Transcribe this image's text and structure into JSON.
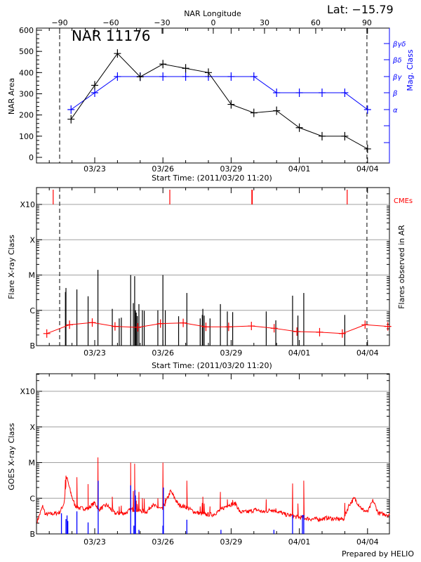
{
  "header": {
    "longitude_axis_label": "NAR Longitude",
    "latitude": "Lat: −15.79",
    "region_title": "NAR 11176"
  },
  "footer": {
    "credit": "Prepared by HELIO"
  },
  "colors": {
    "area": "#000000",
    "mag_class": "#0000ff",
    "cme": "#ff0000",
    "flare_count": "#ff0000",
    "goes_long": "#ff0000",
    "goes_short": "#0000ff",
    "grid": "#a0a0a0"
  },
  "chart_data": [
    {
      "type": "line",
      "title": "NAR 11176",
      "xlabel": "Start Time: (2011/03/20 11:20)",
      "ylabel": "NAR Area",
      "y2label": "Mag. Class",
      "x2label": "NAR Longitude",
      "x_tick_labels": [
        "03/23",
        "03/26",
        "03/29",
        "04/01",
        "04/04"
      ],
      "x2_tick_labels": [
        "−90",
        "−60",
        "−30",
        "0",
        "30",
        "60",
        "90"
      ],
      "limb_longitudes": [
        -90,
        90
      ],
      "ylim": [
        0,
        600
      ],
      "y_tick_labels": [
        "0",
        "100",
        "200",
        "300",
        "400",
        "500",
        "600"
      ],
      "y2_tick_labels": [
        "α",
        "β",
        "βγ",
        "βδ",
        "βγδ"
      ],
      "x": [
        "03/21 23:00",
        "03/23 00:00",
        "03/24 00:00",
        "03/25 00:00",
        "03/26 00:00",
        "03/27 00:00",
        "03/28 00:00",
        "03/29 00:00",
        "03/30 00:00",
        "03/31 00:00",
        "04/01 00:00",
        "04/02 00:00",
        "04/03 00:00",
        "04/04 00:00"
      ],
      "series": [
        {
          "name": "NAR Area",
          "values": [
            180,
            340,
            490,
            380,
            440,
            420,
            400,
            250,
            210,
            220,
            140,
            100,
            100,
            40
          ]
        },
        {
          "name": "Mag. Class",
          "values": [
            "α",
            "β",
            "βγ",
            "βγ",
            "βγ",
            "βγ",
            "βγ",
            "βγ",
            "βγ",
            "β",
            "β",
            "β",
            "β",
            "α"
          ]
        }
      ],
      "grid": false
    },
    {
      "type": "bar",
      "xlabel": "Start Time: (2011/03/20 11:20)",
      "ylabel": "Flare X-ray Class",
      "y2label": "Flares observed in AR",
      "cme_label": "CMEs",
      "x_tick_labels": [
        "03/23",
        "03/26",
        "03/29",
        "04/01",
        "04/04"
      ],
      "y_tick_labels": [
        "B",
        "C",
        "M",
        "X",
        "X10"
      ],
      "grid": true,
      "flares": [
        [
          "03/21 17:04",
          "C3.3"
        ],
        [
          "03/21 17:38",
          "C4.3"
        ],
        [
          "03/22 05:10",
          "C3.9"
        ],
        [
          "03/22 17:00",
          "C2.5"
        ],
        [
          "03/23 03:23",
          "M1.4"
        ],
        [
          "03/23 18:33",
          "C1.1"
        ],
        [
          "03/24 01:52",
          "B5.9"
        ],
        [
          "03/24 04:06",
          "B6.2"
        ],
        [
          "03/24 13:57",
          "M1.0"
        ],
        [
          "03/24 16:46",
          "C1.6"
        ],
        [
          "03/24 18:10",
          "C9.3"
        ],
        [
          "03/24 19:00",
          "C1.0"
        ],
        [
          "03/24 19:51",
          "B8.6"
        ],
        [
          "03/24 20:58",
          "B6.9"
        ],
        [
          "03/24 22:39",
          "C1.5"
        ],
        [
          "03/25 02:19",
          "C1.0"
        ],
        [
          "03/25 04:17",
          "B9.7"
        ],
        [
          "03/25 18:38",
          "C1.0"
        ],
        [
          "03/25 23:58",
          "M1.0"
        ],
        [
          "03/26 02:30",
          "C1.0"
        ],
        [
          "03/26 16:33",
          "B6.8"
        ],
        [
          "03/27 01:16",
          "C3.1"
        ],
        [
          "03/27 15:20",
          "B5.9"
        ],
        [
          "03/27 17:34",
          "B7.4"
        ],
        [
          "03/27 18:08",
          "C1.1"
        ],
        [
          "03/27 19:32",
          "B7.1"
        ],
        [
          "03/28 01:43",
          "B5.9"
        ],
        [
          "03/28 12:41",
          "C1.5"
        ],
        [
          "03/28 20:00",
          "B9.3"
        ],
        [
          "03/29 01:38",
          "B8.9"
        ],
        [
          "03/30 13:03",
          "B9.3"
        ],
        [
          "03/30 23:10",
          "B5.2"
        ],
        [
          "03/31 16:52",
          "C2.6"
        ],
        [
          "03/31 22:30",
          "B7.1"
        ],
        [
          "04/01 04:41",
          "C3.1"
        ],
        [
          "04/03 00:00",
          "B7.4"
        ]
      ],
      "cmes": [
        "03/21 04:09",
        "03/26 07:16",
        "03/29 21:52",
        "03/29 22:20",
        "04/03 02:31"
      ],
      "flares_observed": {
        "x": [
          "03/20 21:24",
          "03/21 21:24",
          "03/22 21:24",
          "03/23 21:24",
          "03/24 21:24",
          "03/25 21:24",
          "03/26 21:24",
          "03/27 21:24",
          "03/28 21:24",
          "03/29 21:24",
          "03/30 21:24",
          "03/31 21:24",
          "04/01 21:24",
          "04/02 21:24",
          "04/03 21:24",
          "04/04 21:24"
        ],
        "values": [
          "B2.2",
          "B3.9",
          "B4.5",
          "B3.5",
          "B3.3",
          "B4.2",
          "B4.4",
          "B3.4",
          "B3.4",
          "B3.6",
          "B3.1",
          "B2.5",
          "B2.4",
          "B2.2",
          "B3.9",
          "B3.5"
        ]
      }
    },
    {
      "type": "line",
      "ylabel": "GOES X-ray Class",
      "x_tick_labels": [
        "03/23",
        "03/26",
        "03/29",
        "04/01",
        "04/04"
      ],
      "y_tick_labels": [
        "B",
        "C",
        "M",
        "X",
        "X10"
      ],
      "grid": true,
      "goes_long": {
        "x": [
          "03/20 12:58",
          "03/20 17:11",
          "03/20 20:00",
          "03/21 07:13",
          "03/21 11:27",
          "03/21 15:40",
          "03/21 18:29",
          "03/21 22:42",
          "03/22 02:54",
          "03/22 08:32",
          "03/22 16:58",
          "03/23 00:00",
          "03/23 04:13",
          "03/23 12:39",
          "03/23 21:05",
          "03/24 08:20",
          "03/24 13:57",
          "03/24 18:10",
          "03/25 06:49",
          "03/25 12:26",
          "03/25 23:41",
          "03/26 08:07",
          "03/26 16:33",
          "03/27 00:59",
          "03/27 09:25",
          "03/27 20:40",
          "03/28 05:07",
          "03/28 13:32",
          "03/28 20:34",
          "03/29 05:00",
          "03/29 09:13",
          "03/29 17:38",
          "03/30 02:05",
          "03/30 10:31",
          "03/30 18:58",
          "03/31 03:23",
          "03/31 09:00",
          "03/31 14:38",
          "03/31 20:15",
          "04/01 04:41",
          "04/01 13:07",
          "04/01 21:33",
          "04/02 06:00",
          "04/02 14:25",
          "04/02 22:51",
          "04/03 04:29",
          "04/03 10:06",
          "04/03 18:32",
          "04/04 00:09",
          "04/04 05:47",
          "04/04 11:24",
          "04/04 19:50",
          "04/04 23:13"
        ],
        "values": [
          3e-07,
          6e-07,
          3.5e-07,
          3.8e-07,
          4.1e-07,
          7.5e-07,
          3.9e-06,
          1.4e-06,
          6.5e-07,
          5.2e-07,
          5.2e-07,
          7.5e-07,
          4.8e-07,
          6.5e-07,
          3.8e-07,
          3.8e-07,
          4.8e-07,
          4.8e-07,
          4.1e-07,
          6.5e-07,
          4.8e-07,
          1.6e-06,
          6.5e-07,
          5.6e-07,
          4.1e-07,
          3.5e-07,
          3.5e-07,
          4.8e-07,
          6.5e-07,
          7e-07,
          4.1e-07,
          4.1e-07,
          4.8e-07,
          4.1e-07,
          4.8e-07,
          4.1e-07,
          3.5e-07,
          3.3e-07,
          3e-07,
          2.8e-07,
          2.6e-07,
          2.6e-07,
          2.8e-07,
          2.6e-07,
          2.6e-07,
          6.5e-07,
          1e-06,
          4.8e-07,
          4.1e-07,
          8.7e-07,
          3.8e-07,
          3.5e-07,
          3.4e-07
        ]
      },
      "goes_short_events": [
        [
          "03/21 12:52",
          "B3.8"
        ],
        [
          "03/21 17:38",
          "B2.6"
        ],
        [
          "03/21 18:46",
          "B3.3"
        ],
        [
          "03/21 19:36",
          "B2.3"
        ],
        [
          "03/22 05:10",
          "B4.3"
        ],
        [
          "03/22 17:00",
          "B2.1"
        ],
        [
          "03/23 03:39",
          "C3.1"
        ],
        [
          "03/24 13:57",
          "C2.3"
        ],
        [
          "03/24 17:20",
          "B1.7"
        ],
        [
          "03/24 18:27",
          "C1.7"
        ],
        [
          "03/24 19:00",
          "C1.2"
        ],
        [
          "03/24 22:39",
          "B1.3"
        ],
        [
          "03/26 00:32",
          "C2.0"
        ],
        [
          "03/25 23:58",
          "B1.7"
        ],
        [
          "03/27 01:16",
          "B2.5"
        ],
        [
          "03/28 13:15",
          "B1.3"
        ],
        [
          "03/30 21:11",
          "B1.3"
        ],
        [
          "03/31 16:52",
          "B3.4"
        ],
        [
          "04/01 03:17",
          "B3.4"
        ],
        [
          "04/01 04:41",
          "B3.4"
        ]
      ]
    }
  ]
}
